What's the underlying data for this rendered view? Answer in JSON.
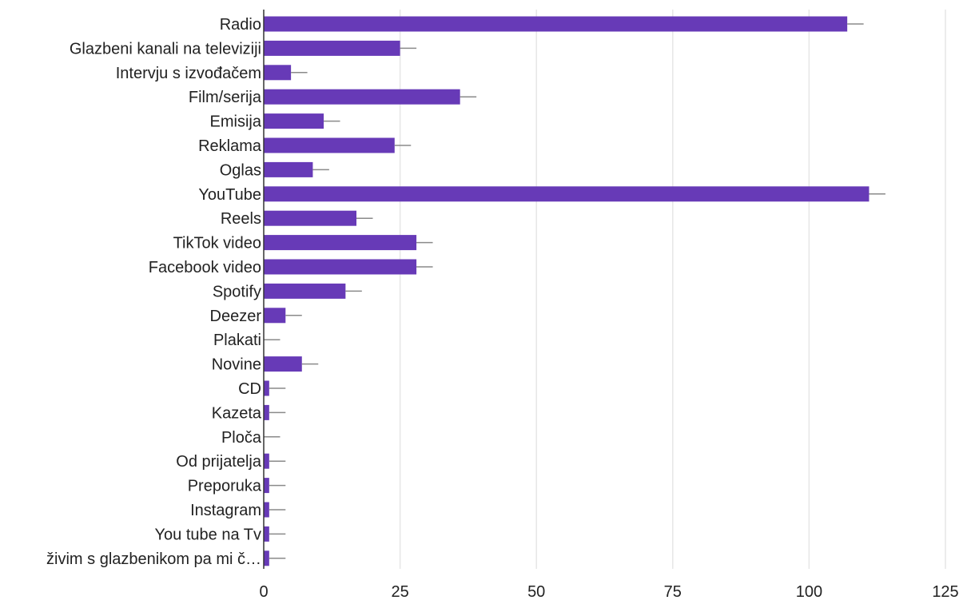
{
  "chart_data": {
    "type": "bar",
    "orientation": "horizontal",
    "categories": [
      "Radio",
      "Glazbeni kanali na televiziji",
      "Intervju s izvođačem",
      "Film/serija",
      "Emisija",
      "Reklama",
      "Oglas",
      "YouTube",
      "Reels",
      "TikTok video",
      "Facebook video",
      "Spotify",
      "Deezer",
      "Plakati",
      "Novine",
      "CD",
      "Kazeta",
      "Ploča",
      "Od prijatelja",
      "Preporuka",
      "Instagram",
      "You tube na Tv",
      "živim s glazbenikom pa mi č…"
    ],
    "values": [
      107,
      25,
      5,
      36,
      11,
      24,
      9,
      111,
      17,
      28,
      28,
      15,
      4,
      0,
      7,
      1,
      1,
      0,
      1,
      1,
      1,
      1,
      1
    ],
    "error": 3,
    "xlim": [
      0,
      125
    ],
    "xticks": [
      "0",
      "25",
      "50",
      "75",
      "100",
      "125"
    ],
    "xtick_values": [
      0,
      25,
      50,
      75,
      100,
      125
    ],
    "grid": true,
    "colors": {
      "bar": "#673ab7",
      "error_bar": "#8a8a8a",
      "grid": "#e6e6e6",
      "axis": "#333333",
      "text": "#222222"
    }
  }
}
